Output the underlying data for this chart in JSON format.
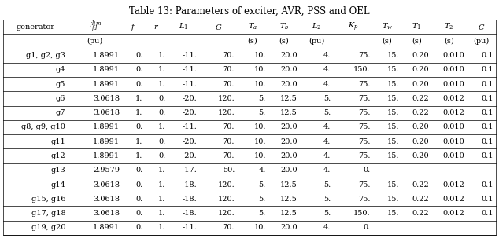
{
  "title": "Table 13: Parameters of exciter, AVR, PSS and OEL",
  "header1": [
    "generator",
    "$i_{fd}^{lim}$",
    "$f$",
    "$r$",
    "$L_1$",
    "$G$",
    "$T_a$",
    "$T_b$",
    "$L_2$",
    "$K_p$",
    "$T_w$",
    "$T_1$",
    "$T_2$",
    "$C$"
  ],
  "header2": [
    "",
    "(pu)",
    "",
    "",
    "",
    "",
    "(s)",
    "(s)",
    "(pu)",
    "",
    "(s)",
    "(s)",
    "(s)",
    "(pu)"
  ],
  "rows": [
    [
      "g1, g2, g3",
      "1.8991",
      "0.",
      "1.",
      "-11.",
      "70.",
      "10.",
      "20.0",
      "4.",
      "75.",
      "15.",
      "0.20",
      "0.010",
      "0.1"
    ],
    [
      "g4",
      "1.8991",
      "0.",
      "1.",
      "-11.",
      "70.",
      "10.",
      "20.0",
      "4.",
      "150.",
      "15.",
      "0.20",
      "0.010",
      "0.1"
    ],
    [
      "g5",
      "1.8991",
      "0.",
      "1.",
      "-11.",
      "70.",
      "10.",
      "20.0",
      "4.",
      "75.",
      "15.",
      "0.20",
      "0.010",
      "0.1"
    ],
    [
      "g6",
      "3.0618",
      "1.",
      "0.",
      "-20.",
      "120.",
      "5.",
      "12.5",
      "5.",
      "75.",
      "15.",
      "0.22",
      "0.012",
      "0.1"
    ],
    [
      "g7",
      "3.0618",
      "1.",
      "0.",
      "-20.",
      "120.",
      "5.",
      "12.5",
      "5.",
      "75.",
      "15.",
      "0.22",
      "0.012",
      "0.1"
    ],
    [
      "g8, g9, g10",
      "1.8991",
      "0.",
      "1.",
      "-11.",
      "70.",
      "10.",
      "20.0",
      "4.",
      "75.",
      "15.",
      "0.20",
      "0.010",
      "0.1"
    ],
    [
      "g11",
      "1.8991",
      "1.",
      "0.",
      "-20.",
      "70.",
      "10.",
      "20.0",
      "4.",
      "75.",
      "15.",
      "0.20",
      "0.010",
      "0.1"
    ],
    [
      "g12",
      "1.8991",
      "1.",
      "0.",
      "-20.",
      "70.",
      "10.",
      "20.0",
      "4.",
      "75.",
      "15.",
      "0.20",
      "0.010",
      "0.1"
    ],
    [
      "g13",
      "2.9579",
      "0.",
      "1.",
      "-17.",
      "50.",
      "4.",
      "20.0",
      "4.",
      "0.",
      "",
      "",
      "",
      ""
    ],
    [
      "g14",
      "3.0618",
      "0.",
      "1.",
      "-18.",
      "120.",
      "5.",
      "12.5",
      "5.",
      "75.",
      "15.",
      "0.22",
      "0.012",
      "0.1"
    ],
    [
      "g15, g16",
      "3.0618",
      "0.",
      "1.",
      "-18.",
      "120.",
      "5.",
      "12.5",
      "5.",
      "75.",
      "15.",
      "0.22",
      "0.012",
      "0.1"
    ],
    [
      "g17, g18",
      "3.0618",
      "0.",
      "1.",
      "-18.",
      "120.",
      "5.",
      "12.5",
      "5.",
      "150.",
      "15.",
      "0.22",
      "0.012",
      "0.1"
    ],
    [
      "g19, g20",
      "1.8991",
      "0.",
      "1.",
      "-11.",
      "70.",
      "10.",
      "20.0",
      "4.",
      "0.",
      "",
      "",
      "",
      ""
    ]
  ],
  "col_widths_pts": [
    62,
    52,
    22,
    22,
    30,
    36,
    30,
    30,
    32,
    38,
    28,
    28,
    34,
    28
  ],
  "font_size": 7.0,
  "title_font_size": 8.5,
  "lw": 0.5
}
